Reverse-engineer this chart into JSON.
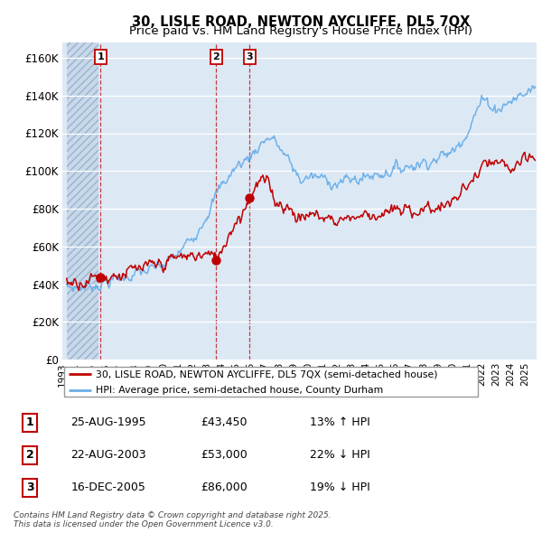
{
  "title": "30, LISLE ROAD, NEWTON AYCLIFFE, DL5 7QX",
  "subtitle": "Price paid vs. HM Land Registry's House Price Index (HPI)",
  "ylim": [
    0,
    168000
  ],
  "yticks": [
    0,
    20000,
    40000,
    60000,
    80000,
    100000,
    120000,
    140000,
    160000
  ],
  "xlim_start": 1993.3,
  "xlim_end": 2025.8,
  "hpi_color": "#6aaee8",
  "price_color": "#C00000",
  "legend_entry1": "30, LISLE ROAD, NEWTON AYCLIFFE, DL5 7QX (semi-detached house)",
  "legend_entry2": "HPI: Average price, semi-detached house, County Durham",
  "sale1_date": 1995.645,
  "sale1_price": 43450,
  "sale1_label": "1",
  "sale2_date": 2003.645,
  "sale2_price": 53000,
  "sale2_label": "2",
  "sale3_date": 2005.958,
  "sale3_price": 86000,
  "sale3_label": "3",
  "table_data": [
    [
      "1",
      "25-AUG-1995",
      "£43,450",
      "13% ↑ HPI"
    ],
    [
      "2",
      "22-AUG-2003",
      "£53,000",
      "22% ↓ HPI"
    ],
    [
      "3",
      "16-DEC-2005",
      "£86,000",
      "19% ↓ HPI"
    ]
  ],
  "footnote": "Contains HM Land Registry data © Crown copyright and database right 2025.\nThis data is licensed under the Open Government Licence v3.0.",
  "title_fontsize": 10.5,
  "subtitle_fontsize": 9.5,
  "hatch_end_year": 1995.5
}
